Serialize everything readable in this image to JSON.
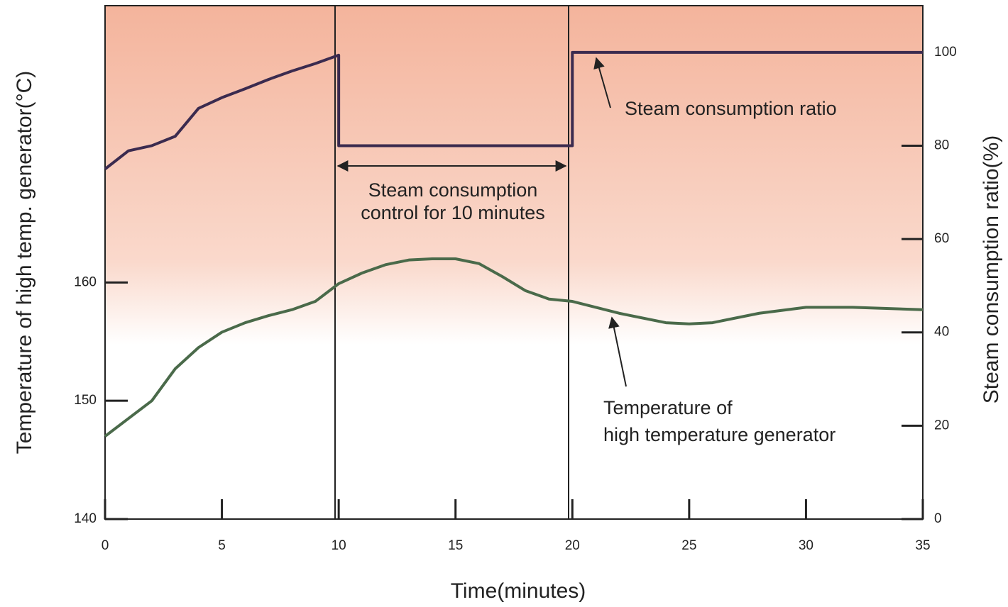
{
  "chart_data": {
    "type": "line",
    "x_label": "Time(minutes)",
    "y_label": "Temperature of high temp. generator(°C)",
    "y2_label": "Steam consumption ratio(%)",
    "xlim": [
      0,
      35
    ],
    "xticks": [
      0,
      5,
      10,
      15,
      20,
      25,
      30,
      35
    ],
    "ylim": [
      140,
      183.4
    ],
    "yticks": [
      140,
      150,
      160
    ],
    "y2lim": [
      0,
      110
    ],
    "y2ticks": [
      0,
      20,
      40,
      60,
      80,
      100
    ],
    "series": [
      {
        "name": "Steam consumption ratio",
        "color": "#3b2b4f",
        "axis": "y2",
        "x": [
          0,
          1,
          2,
          3,
          4,
          5,
          6,
          7,
          8,
          9,
          10,
          10,
          20,
          20,
          35
        ],
        "values": [
          75,
          78.9,
          80,
          82,
          88,
          90.3,
          92.2,
          94.2,
          96,
          97.6,
          99.4,
          80,
          80,
          100,
          100
        ]
      },
      {
        "name": "Temperature of high temperature generator",
        "color": "#4a6a4a",
        "axis": "y",
        "x": [
          0,
          1,
          2,
          3,
          4,
          5,
          6,
          7,
          8,
          9,
          10,
          11,
          12,
          13,
          14,
          15,
          16,
          17,
          18,
          19,
          20,
          22,
          24,
          25,
          26,
          28,
          30,
          32,
          35
        ],
        "values": [
          147,
          148.5,
          150,
          152.7,
          154.5,
          155.8,
          156.6,
          157.2,
          157.7,
          158.4,
          159.9,
          160.8,
          161.5,
          161.9,
          162,
          162,
          161.6,
          160.5,
          159.3,
          158.6,
          158.4,
          157.4,
          156.6,
          156.5,
          156.6,
          157.4,
          157.9,
          157.9,
          157.7
        ]
      }
    ],
    "annotations": {
      "steam_label": "Steam consumption ratio",
      "control_label": [
        "Steam consumption",
        "control for 10 minutes"
      ],
      "temp_label": [
        "Temperature of",
        "high temperature generator"
      ]
    }
  }
}
